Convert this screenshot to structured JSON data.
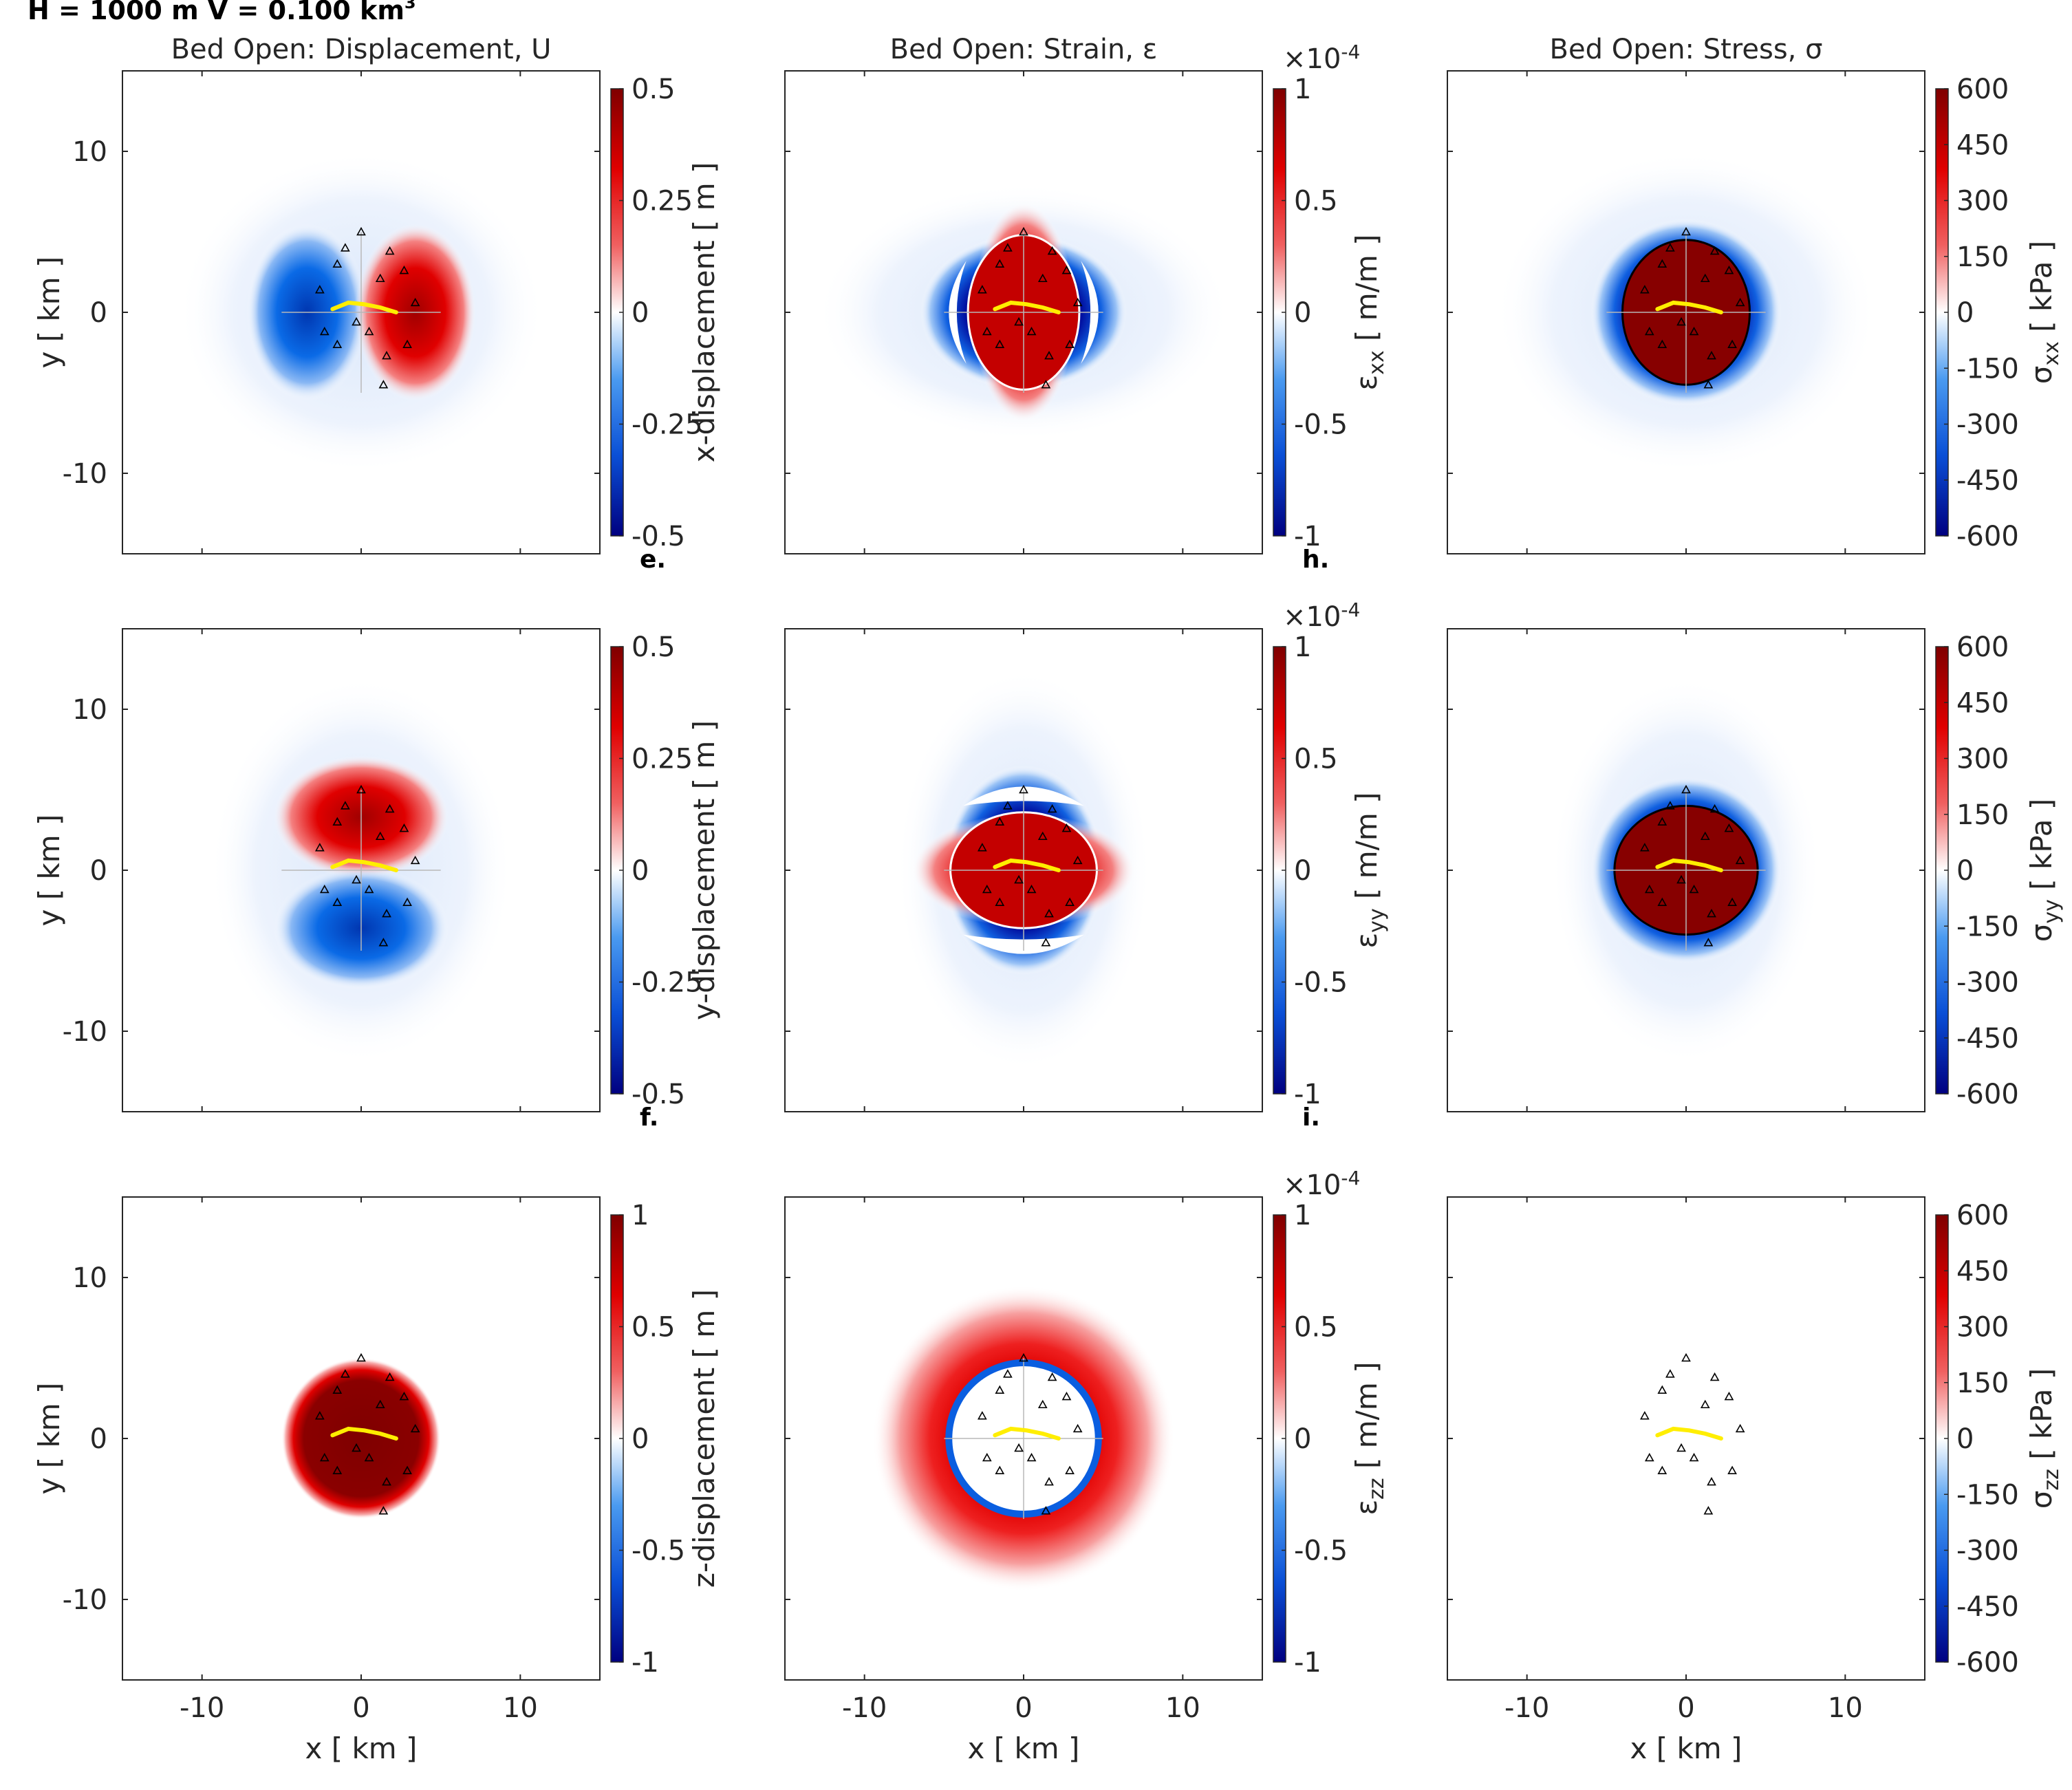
{
  "header": {
    "text": "H = 1000 m   V = 0.100 km",
    "sup": "3"
  },
  "colors": {
    "deep_red": "#7f0000",
    "red": "#e00000",
    "white": "#ffffff",
    "blue": "#0a6ae6",
    "deep_blue": "#000080",
    "line": "#ffee00"
  },
  "columns": [
    {
      "title": "Bed Open: Displacement, U"
    },
    {
      "title": "Bed Open: Strain, ε"
    },
    {
      "title": "Bed Open: Stress, σ"
    }
  ],
  "row_letters": {
    "r1c1": "e.",
    "r1c2": "h.",
    "r2c1": "f.",
    "r2c2": "i."
  },
  "axes": {
    "xlabel": "x [ km ]",
    "ylabel": "y [ km ]",
    "xlim": [
      -15,
      15
    ],
    "ylim": [
      -15,
      15
    ],
    "xticks": [
      {
        "v": -10,
        "t": "-10"
      },
      {
        "v": 0,
        "t": "0"
      },
      {
        "v": 10,
        "t": "10"
      }
    ],
    "yticks": [
      {
        "v": 10,
        "t": "10"
      },
      {
        "v": 0,
        "t": "0"
      },
      {
        "v": -10,
        "t": "-10"
      }
    ]
  },
  "chart_data": [
    {
      "type": "heatmap",
      "row": 0,
      "col": 0,
      "pattern": "dipole-x",
      "colorbar": {
        "label": "x-displacement  [ m ]",
        "min": -0.5,
        "max": 0.5,
        "ticks": [
          {
            "v": 0.5,
            "t": "0.5"
          },
          {
            "v": 0.25,
            "t": "0.25"
          },
          {
            "v": 0,
            "t": "0"
          },
          {
            "v": -0.25,
            "t": "-0.25"
          },
          {
            "v": -0.5,
            "t": "-0.5"
          }
        ],
        "exponent": ""
      }
    },
    {
      "type": "heatmap",
      "row": 0,
      "col": 1,
      "pattern": "strain-xx",
      "colorbar": {
        "label": "εxx  [ m/m ]",
        "label_main": "ε",
        "label_sub": "xx",
        "label_unit": "  [ m/m ]",
        "min": -1,
        "max": 1,
        "ticks": [
          {
            "v": 1,
            "t": "1"
          },
          {
            "v": 0.5,
            "t": "0.5"
          },
          {
            "v": 0,
            "t": "0"
          },
          {
            "v": -0.5,
            "t": "-0.5"
          },
          {
            "v": -1,
            "t": "-1"
          }
        ],
        "exponent": "×10",
        "exponent_power": "-4"
      }
    },
    {
      "type": "heatmap",
      "row": 0,
      "col": 2,
      "pattern": "stress-xx",
      "colorbar": {
        "label_main": "σ",
        "label_sub": "xx",
        "label_unit": "  [ kPa ]",
        "min": -600,
        "max": 600,
        "ticks": [
          {
            "v": 600,
            "t": "600"
          },
          {
            "v": 450,
            "t": "450"
          },
          {
            "v": 300,
            "t": "300"
          },
          {
            "v": 150,
            "t": "150"
          },
          {
            "v": 0,
            "t": "0"
          },
          {
            "v": -150,
            "t": "-150"
          },
          {
            "v": -300,
            "t": "-300"
          },
          {
            "v": -450,
            "t": "-450"
          },
          {
            "v": -600,
            "t": "-600"
          }
        ],
        "exponent": ""
      }
    },
    {
      "type": "heatmap",
      "row": 1,
      "col": 0,
      "pattern": "dipole-y",
      "colorbar": {
        "label": "y-displacement  [ m ]",
        "min": -0.5,
        "max": 0.5,
        "ticks": [
          {
            "v": 0.5,
            "t": "0.5"
          },
          {
            "v": 0.25,
            "t": "0.25"
          },
          {
            "v": 0,
            "t": "0"
          },
          {
            "v": -0.25,
            "t": "-0.25"
          },
          {
            "v": -0.5,
            "t": "-0.5"
          }
        ],
        "exponent": ""
      }
    },
    {
      "type": "heatmap",
      "row": 1,
      "col": 1,
      "pattern": "strain-yy",
      "colorbar": {
        "label_main": "ε",
        "label_sub": "yy",
        "label_unit": "  [ m/m ]",
        "min": -1,
        "max": 1,
        "ticks": [
          {
            "v": 1,
            "t": "1"
          },
          {
            "v": 0.5,
            "t": "0.5"
          },
          {
            "v": 0,
            "t": "0"
          },
          {
            "v": -0.5,
            "t": "-0.5"
          },
          {
            "v": -1,
            "t": "-1"
          }
        ],
        "exponent": "×10",
        "exponent_power": "-4"
      }
    },
    {
      "type": "heatmap",
      "row": 1,
      "col": 2,
      "pattern": "stress-yy",
      "colorbar": {
        "label_main": "σ",
        "label_sub": "yy",
        "label_unit": "  [ kPa ]",
        "min": -600,
        "max": 600,
        "ticks": [
          {
            "v": 600,
            "t": "600"
          },
          {
            "v": 450,
            "t": "450"
          },
          {
            "v": 300,
            "t": "300"
          },
          {
            "v": 150,
            "t": "150"
          },
          {
            "v": 0,
            "t": "0"
          },
          {
            "v": -150,
            "t": "-150"
          },
          {
            "v": -300,
            "t": "-300"
          },
          {
            "v": -450,
            "t": "-450"
          },
          {
            "v": -600,
            "t": "-600"
          }
        ],
        "exponent": ""
      }
    },
    {
      "type": "heatmap",
      "row": 2,
      "col": 0,
      "pattern": "uplift",
      "colorbar": {
        "label": "z-displacement  [ m ]",
        "min": -1,
        "max": 1,
        "ticks": [
          {
            "v": 1,
            "t": "1"
          },
          {
            "v": 0.5,
            "t": "0.5"
          },
          {
            "v": 0,
            "t": "0"
          },
          {
            "v": -0.5,
            "t": "-0.5"
          },
          {
            "v": -1,
            "t": "-1"
          }
        ],
        "exponent": ""
      }
    },
    {
      "type": "heatmap",
      "row": 2,
      "col": 1,
      "pattern": "strain-zz",
      "colorbar": {
        "label_main": "ε",
        "label_sub": "zz",
        "label_unit": "  [ m/m ]",
        "min": -1,
        "max": 1,
        "ticks": [
          {
            "v": 1,
            "t": "1"
          },
          {
            "v": 0.5,
            "t": "0.5"
          },
          {
            "v": 0,
            "t": "0"
          },
          {
            "v": -0.5,
            "t": "-0.5"
          },
          {
            "v": -1,
            "t": "-1"
          }
        ],
        "exponent": "×10",
        "exponent_power": "-4"
      }
    },
    {
      "type": "heatmap",
      "row": 2,
      "col": 2,
      "pattern": "blank",
      "colorbar": {
        "label_main": "σ",
        "label_sub": "zz",
        "label_unit": "  [ kPa ]",
        "min": -600,
        "max": 600,
        "ticks": [
          {
            "v": 600,
            "t": "600"
          },
          {
            "v": 450,
            "t": "450"
          },
          {
            "v": 300,
            "t": "300"
          },
          {
            "v": 150,
            "t": "150"
          },
          {
            "v": 0,
            "t": "0"
          },
          {
            "v": -150,
            "t": "-150"
          },
          {
            "v": -300,
            "t": "-300"
          },
          {
            "v": -450,
            "t": "-450"
          },
          {
            "v": -600,
            "t": "-600"
          }
        ],
        "exponent": ""
      }
    }
  ],
  "stations_km": [
    [
      0,
      5
    ],
    [
      -1,
      4
    ],
    [
      1.8,
      3.8
    ],
    [
      -1.5,
      3
    ],
    [
      2.7,
      2.6
    ],
    [
      1.2,
      2.1
    ],
    [
      -2.6,
      1.4
    ],
    [
      3.4,
      0.6
    ],
    [
      -0.3,
      -0.6
    ],
    [
      -2.3,
      -1.2
    ],
    [
      0.5,
      -1.2
    ],
    [
      -1.5,
      -2
    ],
    [
      2.9,
      -2
    ],
    [
      1.6,
      -2.7
    ],
    [
      1.4,
      -4.5
    ]
  ],
  "line_km": [
    [
      -1.8,
      0.2
    ],
    [
      -0.8,
      0.6
    ],
    [
      0.2,
      0.5
    ],
    [
      1.2,
      0.3
    ],
    [
      2.2,
      0
    ]
  ]
}
